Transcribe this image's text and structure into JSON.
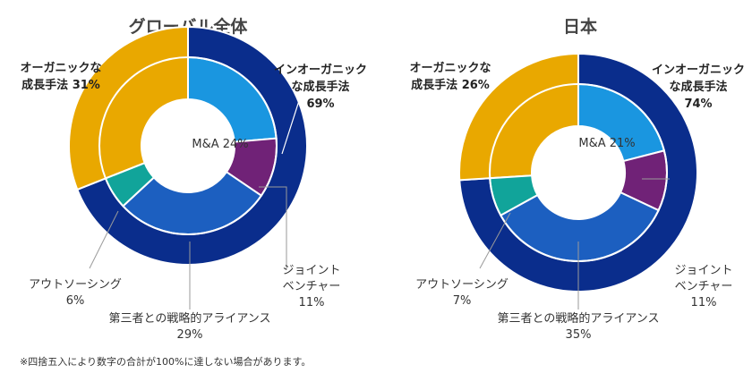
{
  "colors": {
    "organic": "#e9a800",
    "inorganic": "#0a2d8c",
    "ma": "#1a96e0",
    "jv": "#702277",
    "alliance": "#1c5fc0",
    "outsourcing": "#11a49a"
  },
  "footnote": "※四捨五入により数字の合計が100%に達しない場合があります。",
  "chart_data": [
    {
      "type": "pie",
      "title": "グローバル全体",
      "outer": [
        {
          "key": "organic",
          "label_lines": [
            "オーガニックな",
            "成長手法 31%"
          ],
          "value": 31
        },
        {
          "key": "inorganic",
          "label_lines": [
            "インオーガニック",
            "な成長手法",
            "69%"
          ],
          "value": 69
        }
      ],
      "inner": [
        {
          "key": "ma",
          "label_lines": [
            "M&A 24%"
          ],
          "value": 24
        },
        {
          "key": "jv",
          "label_lines": [
            "ジョイント",
            "ベンチャー",
            "11%"
          ],
          "value": 11
        },
        {
          "key": "alliance",
          "label_lines": [
            "第三者との戦略的アライアンス",
            "29%"
          ],
          "value": 29
        },
        {
          "key": "outsourcing",
          "label_lines": [
            "アウトソーシング",
            "6%"
          ],
          "value": 6
        }
      ]
    },
    {
      "type": "pie",
      "title": "日本",
      "outer": [
        {
          "key": "organic",
          "label_lines": [
            "オーガニックな",
            "成長手法 26%"
          ],
          "value": 26
        },
        {
          "key": "inorganic",
          "label_lines": [
            "インオーガニック",
            "な成長手法",
            "74%"
          ],
          "value": 74
        }
      ],
      "inner": [
        {
          "key": "ma",
          "label_lines": [
            "M&A 21%"
          ],
          "value": 21
        },
        {
          "key": "jv",
          "label_lines": [
            "ジョイント",
            "ベンチャー",
            "11%"
          ],
          "value": 11
        },
        {
          "key": "alliance",
          "label_lines": [
            "第三者との戦略的アライアンス",
            "35%"
          ],
          "value": 35
        },
        {
          "key": "outsourcing",
          "label_lines": [
            "アウトソーシング",
            "7%"
          ],
          "value": 7
        }
      ]
    }
  ]
}
